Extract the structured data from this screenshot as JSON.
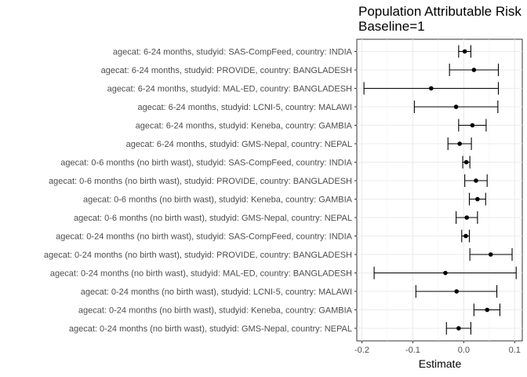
{
  "chart_data": {
    "type": "forest",
    "title": "Population Attributable Risk",
    "subtitle": "Baseline=1",
    "xlabel": "Estimate",
    "ylabel": "",
    "xlim": [
      -0.21,
      0.115
    ],
    "xticks": [
      -0.2,
      -0.1,
      0.0,
      0.1
    ],
    "xtick_labels": [
      "-0.2",
      "-0.1",
      "0.0",
      "0.1"
    ],
    "grid": true,
    "rows": [
      {
        "label": "agecat: 6-24 months, studyid: SAS-CompFeed, country: INDIA",
        "estimate": 0.002,
        "lower": -0.01,
        "upper": 0.014
      },
      {
        "label": "agecat: 6-24 months, studyid: PROVIDE, country: BANGLADESH",
        "estimate": 0.02,
        "lower": -0.028,
        "upper": 0.068
      },
      {
        "label": "agecat: 6-24 months, studyid: MAL-ED, country: BANGLADESH",
        "estimate": -0.064,
        "lower": -0.196,
        "upper": 0.068
      },
      {
        "label": "agecat: 6-24 months, studyid: LCNI-5, country: MALAWI",
        "estimate": -0.015,
        "lower": -0.097,
        "upper": 0.067
      },
      {
        "label": "agecat: 6-24 months, studyid: Keneba, country: GAMBIA",
        "estimate": 0.017,
        "lower": -0.01,
        "upper": 0.044
      },
      {
        "label": "agecat: 6-24 months, studyid: GMS-Nepal, country: NEPAL",
        "estimate": -0.008,
        "lower": -0.031,
        "upper": 0.015
      },
      {
        "label": "agecat: 0-6 months (no birth wast), studyid: SAS-CompFeed, country: INDIA",
        "estimate": 0.005,
        "lower": -0.002,
        "upper": 0.012
      },
      {
        "label": "agecat: 0-6 months (no birth wast), studyid: PROVIDE, country: BANGLADESH",
        "estimate": 0.024,
        "lower": 0.002,
        "upper": 0.046
      },
      {
        "label": "agecat: 0-6 months (no birth wast), studyid: Keneba, country: GAMBIA",
        "estimate": 0.027,
        "lower": 0.011,
        "upper": 0.043
      },
      {
        "label": "agecat: 0-6 months (no birth wast), studyid: GMS-Nepal, country: NEPAL",
        "estimate": 0.006,
        "lower": -0.015,
        "upper": 0.027
      },
      {
        "label": "agecat: 0-24 months (no birth wast), studyid: SAS-CompFeed, country: INDIA",
        "estimate": 0.004,
        "lower": -0.004,
        "upper": 0.011
      },
      {
        "label": "agecat: 0-24 months (no birth wast), studyid: PROVIDE, country: BANGLADESH",
        "estimate": 0.053,
        "lower": 0.012,
        "upper": 0.095
      },
      {
        "label": "agecat: 0-24 months (no birth wast), studyid: MAL-ED, country: BANGLADESH",
        "estimate": -0.036,
        "lower": -0.176,
        "upper": 0.103
      },
      {
        "label": "agecat: 0-24 months (no birth wast), studyid: LCNI-5, country: MALAWI",
        "estimate": -0.014,
        "lower": -0.094,
        "upper": 0.065
      },
      {
        "label": "agecat: 0-24 months (no birth wast), studyid: Keneba, country: GAMBIA",
        "estimate": 0.046,
        "lower": 0.02,
        "upper": 0.071
      },
      {
        "label": "agecat: 0-24 months (no birth wast), studyid: GMS-Nepal, country: NEPAL",
        "estimate": -0.01,
        "lower": -0.034,
        "upper": 0.014
      }
    ]
  }
}
